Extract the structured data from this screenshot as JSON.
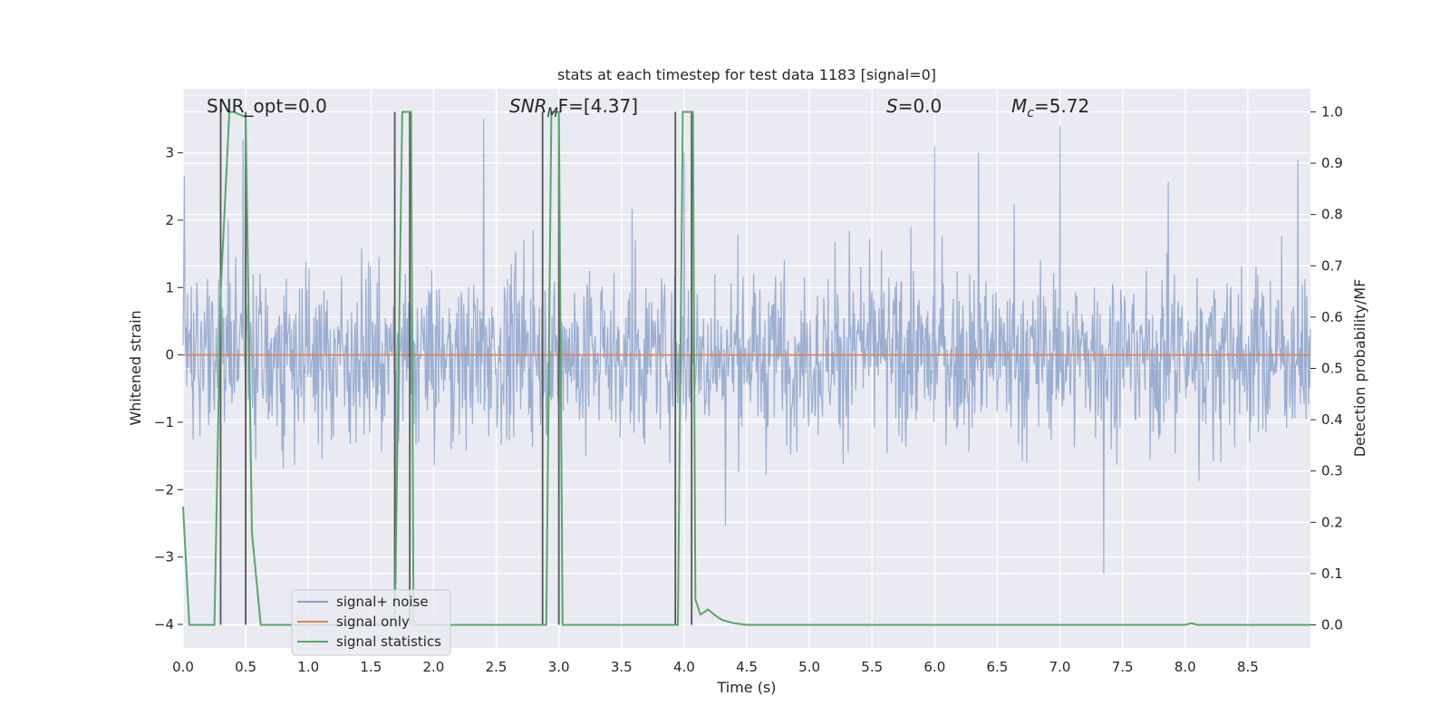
{
  "chart_data": {
    "type": "line",
    "title": "stats at each timestep for test data 1183 [signal=0]",
    "xlabel": "Time (s)",
    "ylabel": "Whitened strain",
    "ylabel_right": "Detection probability/MF",
    "xlim": [
      0.0,
      9.0
    ],
    "ylim": [
      -4.35,
      3.95
    ],
    "ylim_right": [
      -0.045,
      1.045
    ],
    "x_ticks": [
      "0.0",
      "0.5",
      "1.0",
      "1.5",
      "2.0",
      "2.5",
      "3.0",
      "3.5",
      "4.0",
      "4.5",
      "5.0",
      "5.5",
      "6.0",
      "6.5",
      "7.0",
      "7.5",
      "8.0",
      "8.5"
    ],
    "x_tick_values": [
      0.0,
      0.5,
      1.0,
      1.5,
      2.0,
      2.5,
      3.0,
      3.5,
      4.0,
      4.5,
      5.0,
      5.5,
      6.0,
      6.5,
      7.0,
      7.5,
      8.0,
      8.5
    ],
    "y_ticks": [
      "3",
      "2",
      "1",
      "0",
      "−1",
      "−2",
      "−3",
      "−4"
    ],
    "y_tick_values": [
      3,
      2,
      1,
      0,
      -1,
      -2,
      -3,
      -4
    ],
    "y2_ticks": [
      "1.0",
      "0.9",
      "0.8",
      "0.7",
      "0.6",
      "0.5",
      "0.4",
      "0.3",
      "0.2",
      "0.1",
      "0.0"
    ],
    "y2_tick_values": [
      1.0,
      0.9,
      0.8,
      0.7,
      0.6,
      0.5,
      0.4,
      0.3,
      0.2,
      0.1,
      0.0
    ],
    "annotations": {
      "snr_opt": "SNR_opt=0.0",
      "snr_mf_symbol": "SNR",
      "snr_mf_sub": "M",
      "snr_mf_rest": "F=[4.37]",
      "s_symbol": "S",
      "s_rest": "=0.0",
      "mc_symbol": "M",
      "mc_sub": "c",
      "mc_rest": "=5.72"
    },
    "legend": {
      "placement": "lower-left",
      "entries": [
        "signal+ noise",
        "signal only",
        "signal statistics"
      ]
    },
    "colors": {
      "noise": "#4c72b0",
      "signal": "#dd8452",
      "stats": "#55a868",
      "marker": "#555555",
      "bg": "#eaeaf2",
      "grid": "#ffffff"
    },
    "series": [
      {
        "name": "signal statistics",
        "axis": "right",
        "x": [
          0.0,
          0.05,
          0.25,
          0.3,
          0.37,
          0.4,
          0.5,
          0.55,
          0.62,
          0.65,
          1.69,
          1.75,
          1.82,
          1.84,
          1.9,
          2.9,
          2.94,
          3.0,
          3.03,
          3.08,
          3.13,
          3.95,
          3.99,
          4.07,
          4.09,
          4.13,
          4.19,
          4.24,
          4.3,
          4.4,
          4.5,
          8.0,
          8.05,
          8.1,
          9.0
        ],
        "values": [
          0.23,
          0.0,
          0.0,
          0.65,
          1.0,
          1.0,
          0.99,
          0.18,
          0.0,
          0.0,
          0.0,
          1.0,
          1.0,
          0.0,
          0.0,
          0.0,
          1.0,
          1.0,
          0.0,
          0.0,
          0.0,
          0.0,
          1.0,
          1.0,
          0.05,
          0.02,
          0.03,
          0.02,
          0.01,
          0.003,
          0.0,
          0.0,
          0.003,
          0.0,
          0.0
        ]
      },
      {
        "name": "signal only",
        "axis": "left",
        "x": [
          0.0,
          9.0
        ],
        "values": [
          0.0,
          0.0
        ]
      },
      {
        "name": "signal+ noise",
        "axis": "left",
        "kind": "dense white-noise trace, amplitude approx ±1.5 with spikes to ±3.5",
        "spike_x": [
          0.48,
          1.7,
          2.4,
          4.0,
          6.0,
          6.35,
          7.0,
          7.35,
          8.9
        ],
        "spike_values": [
          3.2,
          -3.4,
          3.5,
          3.0,
          3.1,
          3.0,
          3.4,
          -3.25,
          2.9
        ]
      }
    ],
    "vertical_markers": [
      0.3,
      0.5,
      1.69,
      1.81,
      2.87,
      3.0,
      3.93,
      4.06
    ]
  }
}
